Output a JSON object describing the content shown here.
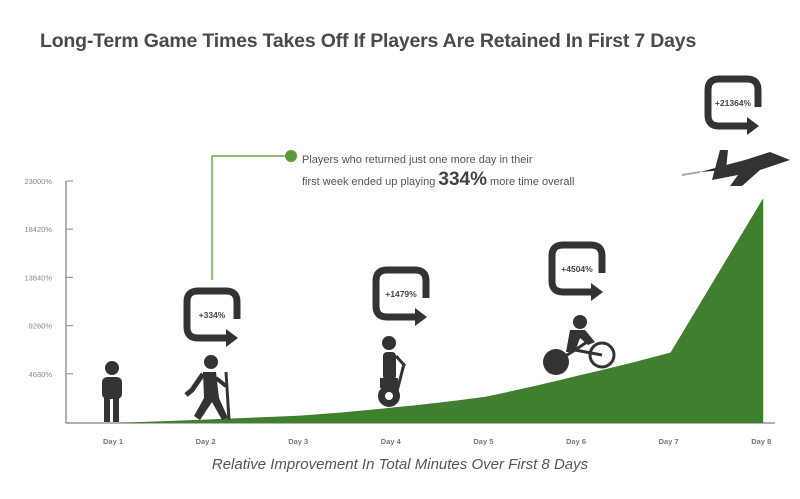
{
  "title": "Long-Term Game Times Takes Off If Players Are Retained In First 7 Days",
  "note": {
    "line1": "Players who returned just one more day in their",
    "line2_pre": "first week ended up playing ",
    "line2_big": "334%",
    "line2_post": " more time overall"
  },
  "colors": {
    "area": "#3f7f2d",
    "callout_line": "#6aaa4c",
    "icon": "#333333",
    "axis": "#999999"
  },
  "chart_data": {
    "type": "area",
    "categories": [
      "Day 1",
      "Day 2",
      "Day 3",
      "Day 4",
      "Day 5",
      "Day 6",
      "Day 7",
      "Day 8"
    ],
    "values": [
      0,
      334,
      700,
      1479,
      2500,
      4504,
      6700,
      21364
    ],
    "ylim": [
      0,
      23000
    ],
    "yticks": [
      "4680%",
      "9260%",
      "13840%",
      "18420%",
      "23000%"
    ],
    "ytick_values": [
      4680,
      9260,
      13840,
      18420,
      23000
    ],
    "xlabel": "Relative Improvement In Total Minutes Over First 8 Days",
    "grid": false,
    "annotations": [
      {
        "category": "Day 2",
        "label": "+334%",
        "icon": "hiker-icon"
      },
      {
        "category": "Day 4",
        "label": "+1479%",
        "icon": "segway-icon"
      },
      {
        "category": "Day 6",
        "label": "+4504%",
        "icon": "cyclist-icon"
      },
      {
        "category": "Day 8",
        "label": "+21364%",
        "icon": "jet-icon"
      }
    ],
    "day1_icon": "standing-person-icon"
  }
}
